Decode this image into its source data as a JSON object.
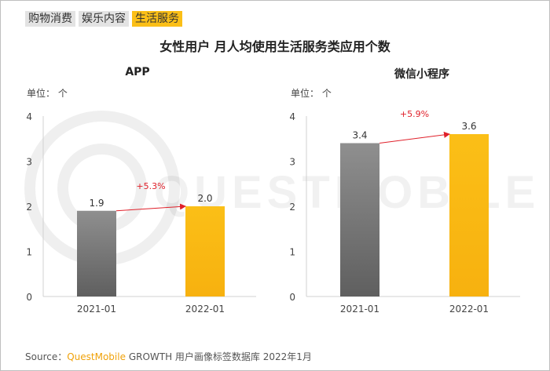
{
  "tabs": [
    {
      "label": "购物消费",
      "active": false
    },
    {
      "label": "娱乐内容",
      "active": false
    },
    {
      "label": "生活服务",
      "active": true
    }
  ],
  "title": "女性用户 月人均使用生活服务类应用个数",
  "watermark": "QUESTMOBILE",
  "colors": {
    "bar_2021": "#7a7a7a",
    "bar_2022": "#fbbf17",
    "growth": "#e0202a",
    "accent": "#f0a20a"
  },
  "chart_data": [
    {
      "type": "bar",
      "title": "APP",
      "unit_label": "单位： 个",
      "categories": [
        "2021-01",
        "2022-01"
      ],
      "values": [
        1.9,
        2.0
      ],
      "value_labels": [
        "1.9",
        "2.0"
      ],
      "growth_label": "+5.3%",
      "yticks": [
        "0",
        "1",
        "2",
        "3",
        "4"
      ],
      "ylim": [
        0,
        4
      ]
    },
    {
      "type": "bar",
      "title": "微信小程序",
      "unit_label": "单位： 个",
      "categories": [
        "2021-01",
        "2022-01"
      ],
      "values": [
        3.4,
        3.6
      ],
      "value_labels": [
        "3.4",
        "3.6"
      ],
      "growth_label": "+5.9%",
      "yticks": [
        "0",
        "1",
        "2",
        "3",
        "4"
      ],
      "ylim": [
        0,
        4
      ]
    }
  ],
  "source": {
    "prefix": "Source：",
    "brand": "QuestMobile",
    "rest": "GROWTH 用户画像标签数据库 2022年1月"
  }
}
